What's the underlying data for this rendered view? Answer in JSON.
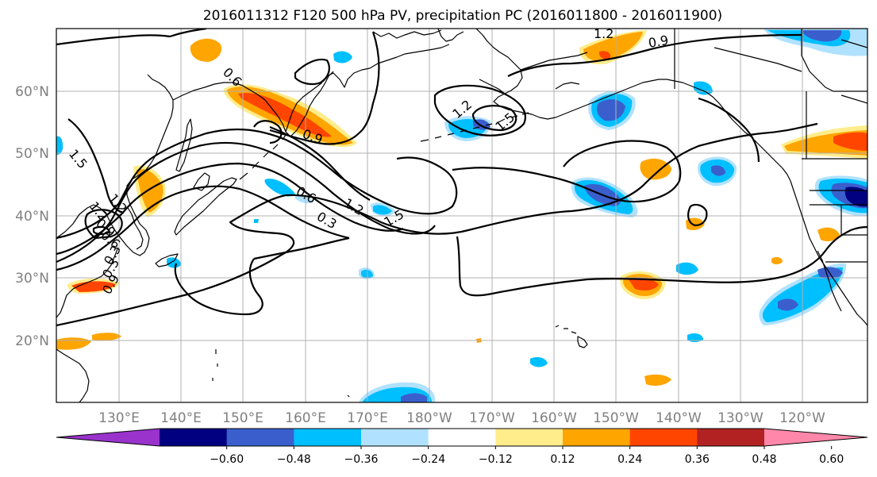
{
  "title": "2016011312 F120 500 hPa PV, precipitation PC (2016011800 - 2016011900)",
  "map": {
    "lat_labels": [
      "20°N",
      "30°N",
      "40°N",
      "50°N",
      "60°N"
    ],
    "lon_labels": [
      "130°E",
      "140°E",
      "150°E",
      "160°E",
      "170°E",
      "180°W",
      "170°W",
      "160°W",
      "150°W",
      "140°W",
      "130°W",
      "120°W"
    ],
    "contour_labels": [
      "1.5",
      "1.2",
      "0.9",
      "0.6",
      "0.3",
      "0.9",
      "0.6",
      "0.9",
      "1.2",
      "0.6",
      "0.3",
      "1.2",
      "1.5",
      "1.2",
      "1.5",
      "0.9",
      "1.2",
      "0.3"
    ],
    "gridlines": true,
    "contour_color": "#000000",
    "coastline_color": "#000000"
  },
  "colorbar": {
    "ticks": [
      "−0.60",
      "−0.48",
      "−0.36",
      "−0.24",
      "−0.12",
      "0.12",
      "0.24",
      "0.36",
      "0.48",
      "0.60"
    ],
    "colors": [
      "#9933cc",
      "#000080",
      "#3a5fcd",
      "#00bfff",
      "#b0e2ff",
      "#ffffff",
      "#ffec8b",
      "#ffa500",
      "#ff4500",
      "#b22222",
      "#ff88aa"
    ],
    "extend": "both"
  }
}
